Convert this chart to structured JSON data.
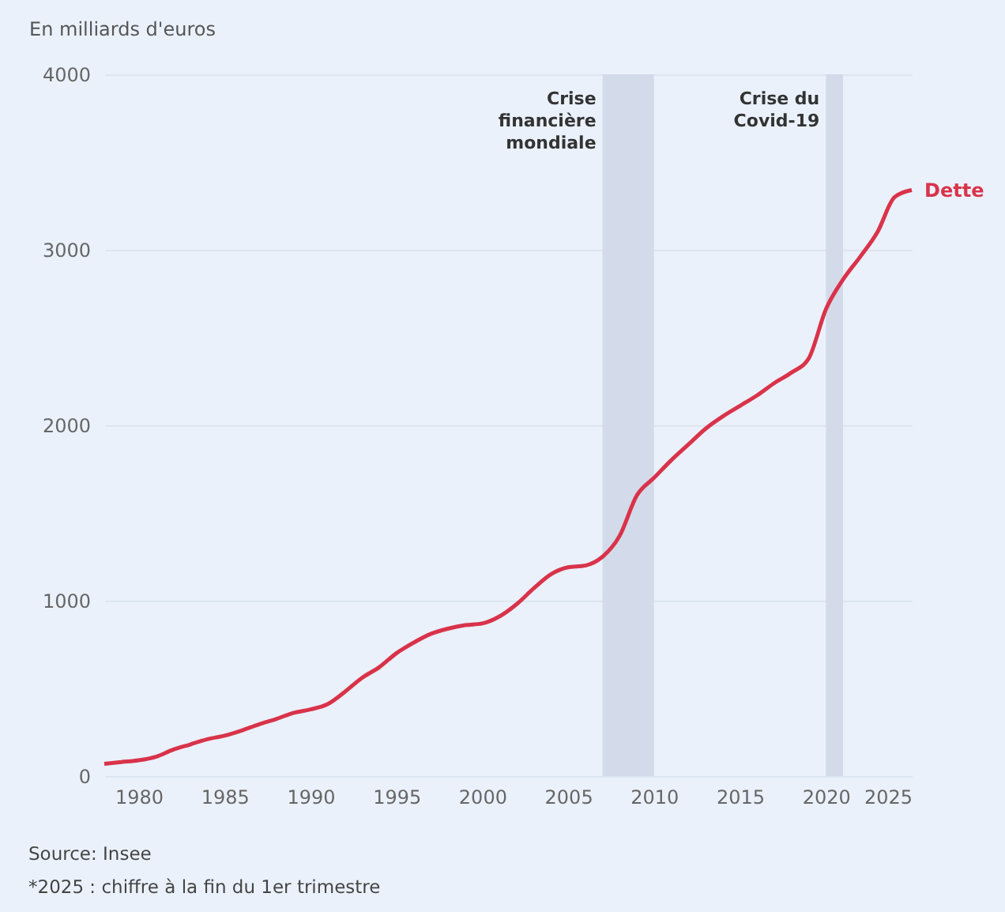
{
  "chart_data": {
    "type": "line",
    "ylabel": "En milliards d'euros",
    "x": [
      1978,
      1979,
      1980,
      1981,
      1982,
      1983,
      1984,
      1985,
      1986,
      1987,
      1988,
      1989,
      1990,
      1991,
      1992,
      1993,
      1994,
      1995,
      1996,
      1997,
      1998,
      1999,
      2000,
      2001,
      2002,
      2003,
      2004,
      2005,
      2006,
      2007,
      2008,
      2009,
      2010,
      2011,
      2012,
      2013,
      2014,
      2015,
      2016,
      2017,
      2018,
      2019,
      2020,
      2021,
      2022,
      2023,
      2024,
      2025
    ],
    "series": [
      {
        "name": "Dette",
        "color": "#d9334a",
        "values": [
          70,
          80,
          90,
          110,
          150,
          180,
          210,
          230,
          260,
          295,
          325,
          360,
          380,
          410,
          480,
          560,
          620,
          700,
          760,
          810,
          840,
          860,
          870,
          910,
          980,
          1070,
          1150,
          1190,
          1200,
          1250,
          1370,
          1600,
          1700,
          1800,
          1890,
          1980,
          2050,
          2110,
          2170,
          2240,
          2300,
          2380,
          2660,
          2830,
          2960,
          3100,
          3300,
          3340
        ]
      }
    ],
    "xlim": [
      1978,
      2025
    ],
    "xticks": [
      1980,
      1985,
      1990,
      1995,
      2000,
      2005,
      2010,
      2015,
      2020,
      2025
    ],
    "ylim": [
      0,
      4000
    ],
    "yticks": [
      0,
      1000,
      2000,
      3000,
      4000
    ],
    "grid": "y",
    "bands": [
      {
        "axis": "x",
        "from": 2007,
        "to": 2010,
        "label": "Crise\nfinancière\nmondiale",
        "color": "#d3dbea"
      },
      {
        "axis": "x",
        "from": 2020,
        "to": 2021,
        "label": "Crise du\nCovid-19",
        "color": "#d3dbea"
      }
    ],
    "annotations": [
      "Source: Insee",
      "*2025 : chiffre à la fin du 1er trimestre"
    ]
  }
}
